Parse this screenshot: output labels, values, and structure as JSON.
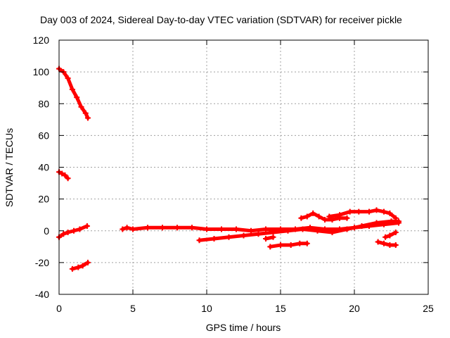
{
  "chart_data": {
    "type": "scatter",
    "title": "Day 003 of 2024, Sidereal Day-to-day VTEC variation (SDTVAR) for receiver pickle",
    "xlabel": "GPS time / hours",
    "ylabel": "SDTVAR / TECUs",
    "xlim": [
      0,
      25
    ],
    "ylim": [
      -40,
      120
    ],
    "xticks": [
      0,
      5,
      10,
      15,
      20,
      25
    ],
    "yticks": [
      -40,
      -20,
      0,
      20,
      40,
      60,
      80,
      100,
      120
    ],
    "grid": true,
    "marker": "plus",
    "color": "#ff0000",
    "series": [
      {
        "x": [
          0.0,
          0.3,
          0.6,
          0.9,
          1.2,
          1.5,
          1.8,
          1.95
        ],
        "y": [
          102,
          100,
          96,
          89,
          84,
          78,
          74,
          71
        ]
      },
      {
        "x": [
          0.0,
          0.2,
          0.4,
          0.6
        ],
        "y": [
          37,
          36,
          35,
          33
        ]
      },
      {
        "x": [
          0.0,
          0.3,
          0.6,
          1.0,
          1.4,
          1.9
        ],
        "y": [
          -4,
          -2,
          -1,
          0,
          1,
          3
        ]
      },
      {
        "x": [
          0.9,
          1.3,
          1.6,
          1.95
        ],
        "y": [
          -24,
          -23,
          -22,
          -20
        ]
      },
      {
        "x": [
          4.3,
          4.6,
          5.0,
          6.0,
          7.0,
          8.0,
          9.0,
          10.0,
          11.0,
          12.0,
          13.0,
          14.0,
          15.0,
          16.0,
          17.0,
          18.0,
          19.0,
          20.0,
          21.0,
          22.0,
          23.0
        ],
        "y": [
          1,
          2,
          1,
          2,
          2,
          2,
          2,
          1,
          1,
          1,
          0,
          1,
          1,
          1,
          2,
          1,
          1,
          2,
          3,
          4,
          5
        ]
      },
      {
        "x": [
          9.5,
          10.5,
          11.5,
          12.5,
          13.5,
          14.5,
          15.5,
          16.5,
          17.5,
          18.5,
          19.5,
          20.5,
          21.5,
          22.5,
          23.0
        ],
        "y": [
          -6,
          -5,
          -4,
          -3,
          -2,
          -1,
          0,
          1,
          0,
          -1,
          1,
          3,
          5,
          6,
          6
        ]
      },
      {
        "x": [
          14.0,
          14.5
        ],
        "y": [
          -5,
          -4
        ]
      },
      {
        "x": [
          14.3,
          15.0,
          15.7,
          16.3,
          16.8
        ],
        "y": [
          -10,
          -9,
          -9,
          -8,
          -8
        ]
      },
      {
        "x": [
          16.4,
          16.8,
          17.2,
          17.6,
          18.0,
          18.5,
          19.0,
          19.5
        ],
        "y": [
          8,
          9,
          11,
          9,
          7,
          7,
          8,
          8
        ]
      },
      {
        "x": [
          18.3,
          19.0,
          19.7,
          20.3,
          21.0,
          21.5,
          22.0,
          22.4,
          22.8
        ],
        "y": [
          9,
          10,
          12,
          12,
          12,
          13,
          12,
          11,
          8
        ]
      },
      {
        "x": [
          21.6,
          22.0,
          22.4,
          22.8
        ],
        "y": [
          -7,
          -8,
          -9,
          -9
        ]
      },
      {
        "x": [
          22.1,
          22.4,
          22.8
        ],
        "y": [
          -4,
          -3,
          -1
        ]
      }
    ]
  }
}
